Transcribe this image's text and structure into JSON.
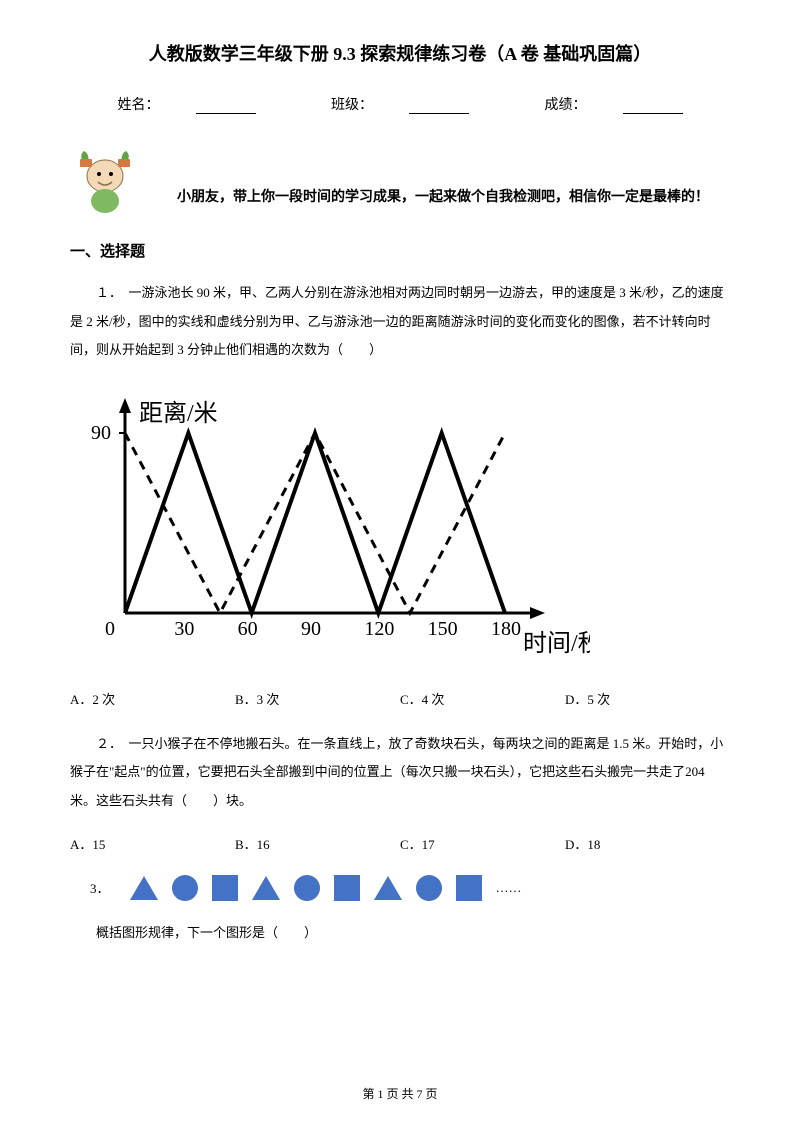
{
  "title": "人教版数学三年级下册 9.3 探索规律练习卷（A 卷 基础巩固篇）",
  "info": {
    "name_label": "姓名：",
    "class_label": "班级：",
    "score_label": "成绩："
  },
  "encourage_text": "小朋友，带上你一段时间的学习成果，一起来做个自我检测吧，相信你一定是最棒的！",
  "section1_head": "一、选择题",
  "q1": {
    "text": "１．　一游泳池长 90 米，甲、乙两人分别在游泳池相对两边同时朝另一边游去，甲的速度是 3 米/秒，乙的速度是 2 米/秒，图中的实线和虚线分别为甲、乙与游泳池一边的距离随游泳时间的变化而变化的图像，若不计转向时间，则从开始起到 3 分钟止他们相遇的次数为（　　）",
    "options": {
      "a": "A．2 次",
      "b": "B．3 次",
      "c": "C．4 次",
      "d": "D．5 次"
    }
  },
  "chart": {
    "type": "line_dual",
    "y_label": "距离/米",
    "x_label": "时间/秒",
    "y_max": 90,
    "x_ticks": [
      0,
      30,
      60,
      90,
      120,
      150,
      180
    ],
    "y_tick": 90,
    "solid_series": [
      [
        0,
        0
      ],
      [
        30,
        90
      ],
      [
        60,
        0
      ],
      [
        90,
        90
      ],
      [
        120,
        0
      ],
      [
        150,
        90
      ],
      [
        180,
        0
      ]
    ],
    "dashed_series": [
      [
        0,
        90
      ],
      [
        45,
        0
      ],
      [
        90,
        90
      ],
      [
        135,
        0
      ],
      [
        180,
        90
      ]
    ],
    "axis_color": "#000000",
    "solid_color": "#000000",
    "dashed_color": "#000000",
    "line_width": 3,
    "background": "#ffffff",
    "font_size": 18
  },
  "q2": {
    "text": "２．　一只小猴子在不停地搬石头。在一条直线上，放了奇数块石头，每两块之间的距离是 1.5 米。开始时，小猴子在\"起点\"的位置，它要把石头全部搬到中间的位置上（每次只搬一块石头），它把这些石头搬完一共走了204 米。这些石头共有（　　）块。",
    "options": {
      "a": "A．15",
      "b": "B．16",
      "c": "C．17",
      "d": "D．18"
    }
  },
  "q3": {
    "label": "3．",
    "ellipsis": "……",
    "text": "概括图形规律，下一个图形是（　　）",
    "shapes_color": "#4472c4",
    "sequence": [
      "triangle",
      "circle",
      "square",
      "triangle",
      "circle",
      "square",
      "triangle",
      "circle",
      "square"
    ]
  },
  "footer": "第 1 页 共 7 页"
}
